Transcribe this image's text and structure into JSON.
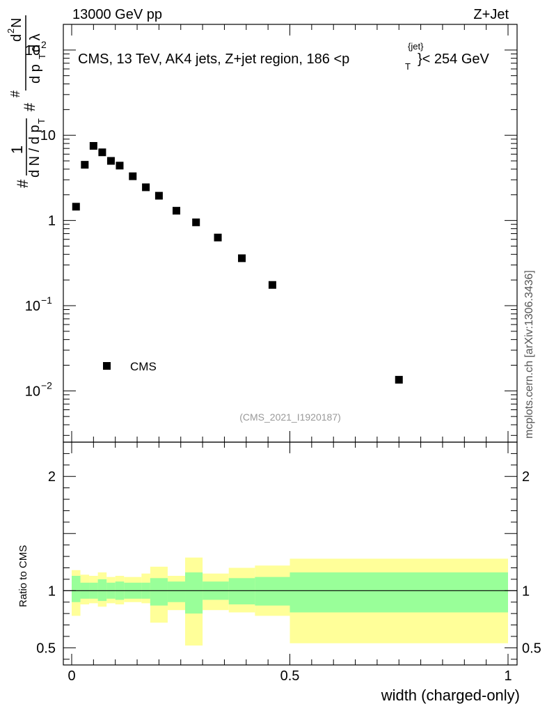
{
  "header": {
    "energy_label": "13000 GeV pp",
    "process_label": "Z+Jet"
  },
  "side_label": "mcplots.cern.ch [arXiv:1306.3436]",
  "chart_data": [
    {
      "type": "scatter",
      "panel": "main",
      "log_y": true,
      "title": "CMS, 13 TeV, AK4 jets, Z+jet region, 186 <p",
      "title_sup": "{jet}",
      "title_sub": "T",
      "title_tail": "}< 254 GeV",
      "ylabel": "1/(dN/dp_T) d^2N/(dp_T dλ)",
      "ylabel_parts": {
        "hash1": "#",
        "frac_num": "1",
        "frac_den": "d N / d p",
        "frac_den_sub": "T",
        "hash2": "#",
        "num2": "d",
        "num2_sup": "2",
        "num2_tail": "N",
        "den2": "d p",
        "den2_sub": "T",
        "den2_tail": " d λ"
      },
      "xlim": [
        0,
        1
      ],
      "ylim": [
        0.0025,
        200
      ],
      "y_ticks": [
        {
          "value": 0.01,
          "label_base": "10",
          "label_exp": "−2"
        },
        {
          "value": 0.1,
          "label_base": "10",
          "label_exp": "−1"
        },
        {
          "value": 1,
          "label_base": "1",
          "label_exp": ""
        },
        {
          "value": 10,
          "label_base": "10",
          "label_exp": ""
        },
        {
          "value": 100,
          "label_base": "10",
          "label_exp": "2"
        }
      ],
      "series": [
        {
          "name": "CMS",
          "marker": "square",
          "x": [
            0.01,
            0.03,
            0.05,
            0.07,
            0.09,
            0.11,
            0.14,
            0.17,
            0.2,
            0.24,
            0.285,
            0.335,
            0.39,
            0.46,
            0.75
          ],
          "y": [
            1.45,
            4.5,
            7.5,
            6.3,
            5.0,
            4.4,
            3.3,
            2.45,
            1.95,
            1.3,
            0.95,
            0.63,
            0.36,
            0.175,
            0.0135
          ]
        }
      ],
      "legend": {
        "entry": "CMS",
        "position": "bottom-left"
      },
      "annotation": "(CMS_2021_I1920187)"
    },
    {
      "type": "area",
      "panel": "ratio",
      "ylabel": "Ratio to CMS",
      "xlabel": "width (charged-only)",
      "xlim": [
        0,
        1
      ],
      "ylim": [
        0.35,
        2.3
      ],
      "x_tick_labels": [
        {
          "value": 0,
          "label": "0"
        },
        {
          "value": 0.5,
          "label": "0.5"
        },
        {
          "value": 1,
          "label": "1"
        }
      ],
      "y_tick_labels": [
        {
          "value": 0.5,
          "label": "0.5"
        },
        {
          "value": 1,
          "label": "1"
        },
        {
          "value": 2,
          "label": "2"
        }
      ],
      "bin_edges": [
        0,
        0.02,
        0.04,
        0.06,
        0.08,
        0.1,
        0.12,
        0.16,
        0.18,
        0.22,
        0.26,
        0.3,
        0.36,
        0.42,
        0.5,
        1.0
      ],
      "bands": [
        {
          "name": "stat",
          "color": "#99ff99",
          "lo": [
            0.9,
            0.93,
            0.93,
            0.91,
            0.93,
            0.92,
            0.93,
            0.93,
            0.87,
            0.9,
            0.8,
            0.92,
            0.88,
            0.87,
            0.81
          ],
          "hi": [
            1.13,
            1.07,
            1.07,
            1.1,
            1.07,
            1.08,
            1.07,
            1.07,
            1.11,
            1.08,
            1.16,
            1.08,
            1.11,
            1.12,
            1.16
          ]
        },
        {
          "name": "syst",
          "color": "#ffff99",
          "lo": [
            0.78,
            0.88,
            0.89,
            0.86,
            0.89,
            0.88,
            0.9,
            0.89,
            0.72,
            0.83,
            0.52,
            0.83,
            0.81,
            0.78,
            0.54
          ],
          "hi": [
            1.18,
            1.14,
            1.13,
            1.16,
            1.12,
            1.13,
            1.12,
            1.15,
            1.21,
            1.13,
            1.29,
            1.15,
            1.2,
            1.22,
            1.28
          ]
        }
      ],
      "reference_line": 1
    }
  ]
}
